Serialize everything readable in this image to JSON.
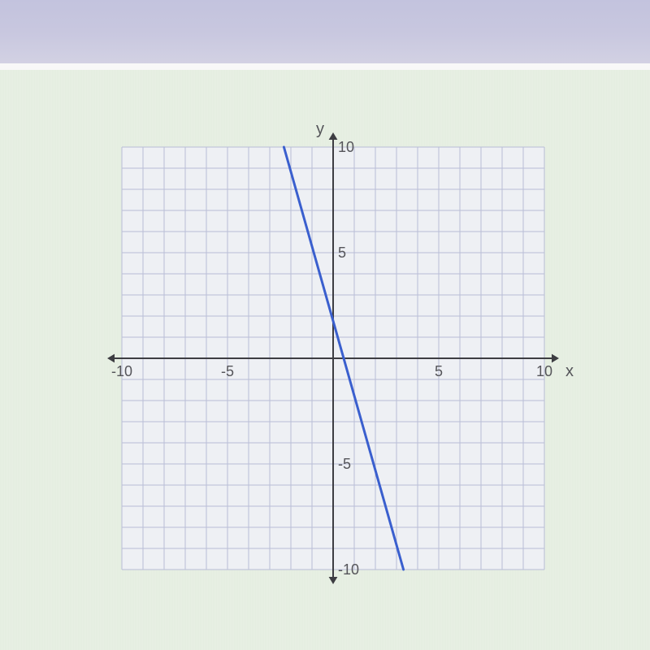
{
  "chart": {
    "type": "line",
    "x_axis_label": "x",
    "y_axis_label": "y",
    "xlim": [
      -10,
      10
    ],
    "ylim": [
      -10,
      10
    ],
    "tick_step": 5,
    "xticks": [
      -10,
      -5,
      5,
      10
    ],
    "yticks": [
      -10,
      -5,
      5,
      10
    ],
    "grid_step": 1,
    "grid_color": "#b8bdd6",
    "grid_width": 1,
    "axis_color": "#3d3d42",
    "axis_width": 2,
    "background_color": "#eef0f4",
    "paper_bg": "#e6efe2",
    "line": {
      "color": "#3a5fce",
      "width": 3,
      "points": [
        [
          -2.33,
          10
        ],
        [
          3.33,
          -10
        ]
      ]
    },
    "label_fontsize": 20,
    "tick_fontsize": 18,
    "label_color": "#55555a"
  }
}
